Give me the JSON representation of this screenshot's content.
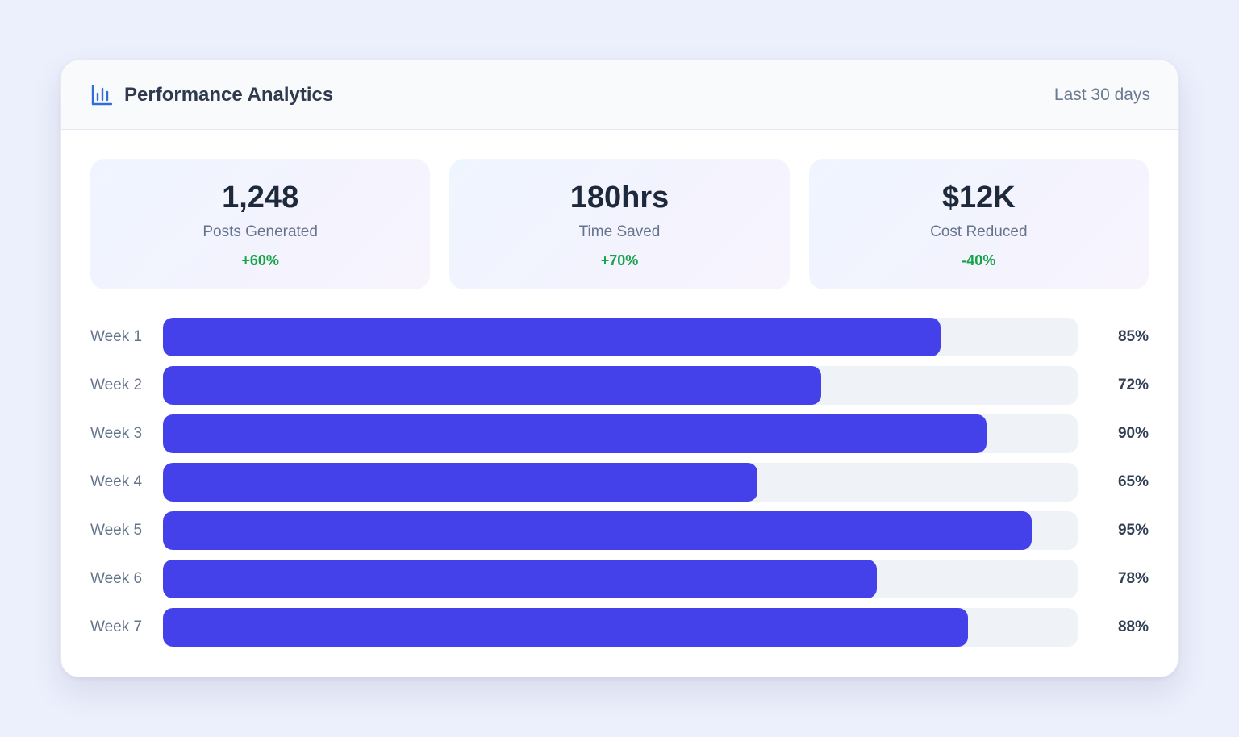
{
  "header": {
    "title": "Performance Analytics",
    "range": "Last 30 days",
    "icon": "bar-chart-icon",
    "accent": "#2f6fd6"
  },
  "stats": [
    {
      "value": "1,248",
      "label": "Posts Generated",
      "change": "+60%"
    },
    {
      "value": "180hrs",
      "label": "Time Saved",
      "change": "+70%"
    },
    {
      "value": "$12K",
      "label": "Cost Reduced",
      "change": "-40%"
    }
  ],
  "chart_data": {
    "type": "bar",
    "orientation": "horizontal",
    "categories": [
      "Week 1",
      "Week 2",
      "Week 3",
      "Week 4",
      "Week 5",
      "Week 6",
      "Week 7"
    ],
    "values": [
      85,
      72,
      90,
      65,
      95,
      78,
      88
    ],
    "value_labels": [
      "85%",
      "72%",
      "90%",
      "65%",
      "95%",
      "78%",
      "88%"
    ],
    "xlim": [
      0,
      100
    ],
    "grid": false,
    "bar_color": "#4441ea",
    "track_color": "#eff3f8"
  }
}
